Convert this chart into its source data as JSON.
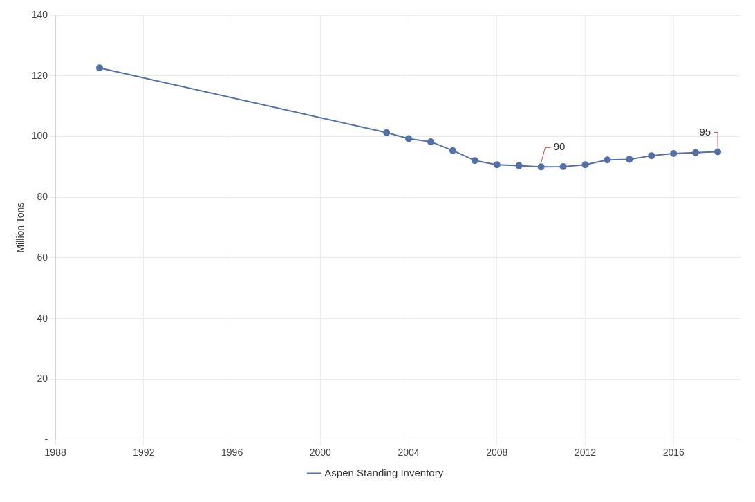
{
  "chart_data": {
    "type": "line",
    "ylabel": "Million Tons",
    "x": [
      1990,
      2003,
      2004,
      2005,
      2006,
      2007,
      2008,
      2009,
      2010,
      2011,
      2012,
      2013,
      2014,
      2015,
      2016,
      2017,
      2018
    ],
    "series": [
      {
        "name": "Aspen Standing Inventory",
        "color": "#5470a8",
        "values": [
          122.6,
          101.3,
          99.3,
          98.3,
          95.4,
          92.1,
          90.7,
          90.4,
          90,
          90.1,
          90.7,
          92.3,
          92.5,
          93.7,
          94.4,
          94.7,
          95
        ],
        "value_labels": [
          null,
          null,
          null,
          null,
          null,
          null,
          null,
          null,
          "90",
          null,
          null,
          null,
          null,
          null,
          null,
          null,
          "95"
        ]
      }
    ],
    "xlim": [
      1988,
      2019
    ],
    "xticks": [
      1988,
      1992,
      1996,
      2000,
      2004,
      2008,
      2012,
      2016
    ],
    "ylim": [
      0,
      140
    ],
    "yticks": [
      {
        "value": 0,
        "label": "-"
      },
      20,
      40,
      60,
      80,
      100,
      120,
      140
    ],
    "grid": true,
    "legend": "bottom",
    "marker": "circle",
    "line_style": "solid"
  }
}
